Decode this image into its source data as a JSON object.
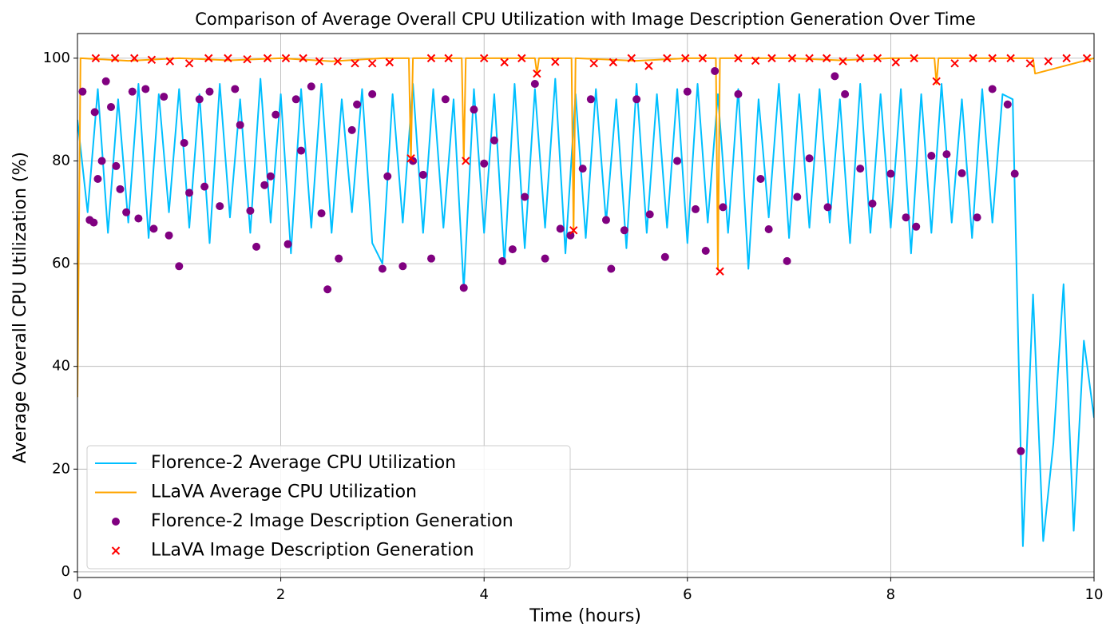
{
  "chart_data": {
    "type": "line",
    "title": "Comparison of Average Overall CPU Utilization with Image Description Generation Over Time",
    "x_label": "Time (hours)",
    "y_label": "Average Overall CPU Utilization (%)",
    "xlim": [
      0,
      10
    ],
    "xticks": [
      0,
      2,
      4,
      6,
      8,
      10
    ],
    "ylim": [
      -1.1,
      104.8
    ],
    "yticks": [
      0,
      20,
      40,
      60,
      80,
      100
    ],
    "grid": true,
    "legend_loc": "lower left",
    "series": [
      {
        "name": "Florence-2 Average CPU Utilization",
        "type": "line",
        "color": "#00bfff",
        "x": [
          0,
          0.1,
          0.2,
          0.3,
          0.4,
          0.5,
          0.6,
          0.7,
          0.8,
          0.9,
          1,
          1.1,
          1.2,
          1.3,
          1.4,
          1.5,
          1.6,
          1.7,
          1.8,
          1.9,
          2,
          2.1,
          2.2,
          2.3,
          2.4,
          2.5,
          2.6,
          2.7,
          2.8,
          2.9,
          3,
          3.1,
          3.2,
          3.3,
          3.4,
          3.5,
          3.6,
          3.7,
          3.8,
          3.9,
          4,
          4.1,
          4.2,
          4.3,
          4.4,
          4.5,
          4.6,
          4.7,
          4.8,
          4.9,
          5,
          5.1,
          5.2,
          5.3,
          5.4,
          5.5,
          5.6,
          5.7,
          5.8,
          5.9,
          6,
          6.1,
          6.2,
          6.3,
          6.4,
          6.5,
          6.6,
          6.7,
          6.8,
          6.9,
          7,
          7.1,
          7.2,
          7.3,
          7.4,
          7.5,
          7.6,
          7.7,
          7.8,
          7.9,
          8,
          8.1,
          8.2,
          8.3,
          8.4,
          8.5,
          8.6,
          8.7,
          8.8,
          8.9,
          9,
          9.1,
          9.2,
          9.3,
          9.4,
          9.5,
          9.6,
          9.7,
          9.8,
          9.9,
          10
        ],
        "values": [
          88,
          70,
          94,
          66,
          92,
          68,
          95,
          65,
          93,
          70,
          94,
          67,
          93,
          64,
          95,
          69,
          92,
          66,
          96,
          68,
          93,
          62,
          94,
          67,
          95,
          66,
          92,
          70,
          94,
          64,
          60,
          93,
          68,
          95,
          66,
          94,
          67,
          92,
          55,
          94,
          66,
          93,
          60,
          95,
          63,
          94,
          67,
          96,
          62,
          93,
          65,
          94,
          68,
          92,
          63,
          95,
          66,
          93,
          67,
          94,
          64,
          95,
          68,
          93,
          66,
          94,
          59,
          92,
          69,
          95,
          65,
          93,
          67,
          94,
          68,
          92,
          64,
          95,
          66,
          93,
          67,
          94,
          62,
          93,
          66,
          95,
          68,
          92,
          65,
          94,
          68,
          93,
          92,
          5,
          54,
          6,
          25,
          56,
          8,
          45,
          30
        ]
      },
      {
        "name": "LLaVA Average CPU Utilization",
        "type": "line",
        "color": "#ffa500",
        "x": [
          0,
          0.03,
          0.5,
          1,
          1.5,
          2,
          2.5,
          3,
          3.26,
          3.28,
          3.3,
          3.78,
          3.8,
          3.82,
          4.5,
          4.52,
          4.54,
          4.86,
          4.88,
          4.9,
          5.5,
          6,
          6.28,
          6.3,
          6.32,
          7,
          7.5,
          8,
          8.43,
          8.45,
          8.47,
          9,
          9.4,
          9.42,
          10
        ],
        "values": [
          34,
          100,
          99.5,
          100,
          99.6,
          100,
          99.4,
          100,
          100,
          80,
          100,
          100,
          80,
          100,
          100,
          97,
          100,
          100,
          66,
          100,
          99.5,
          100,
          100,
          59,
          100,
          100,
          99.6,
          100,
          100,
          95,
          100,
          100,
          100,
          97,
          100
        ]
      },
      {
        "name": "Florence-2 Image Description Generation",
        "type": "scatter",
        "color": "#800080",
        "marker": "circle",
        "x": [
          0.05,
          0.12,
          0.16,
          0.17,
          0.2,
          0.24,
          0.28,
          0.33,
          0.38,
          0.42,
          0.48,
          0.54,
          0.6,
          0.67,
          0.75,
          0.85,
          0.9,
          1.0,
          1.05,
          1.1,
          1.2,
          1.25,
          1.3,
          1.4,
          1.55,
          1.6,
          1.7,
          1.76,
          1.84,
          1.9,
          1.95,
          2.07,
          2.15,
          2.2,
          2.3,
          2.4,
          2.46,
          2.57,
          2.7,
          2.75,
          2.9,
          3.0,
          3.05,
          3.2,
          3.3,
          3.4,
          3.48,
          3.62,
          3.8,
          3.9,
          4.0,
          4.1,
          4.18,
          4.28,
          4.4,
          4.5,
          4.6,
          4.75,
          4.85,
          4.97,
          5.05,
          5.2,
          5.25,
          5.38,
          5.5,
          5.63,
          5.78,
          5.9,
          6.0,
          6.08,
          6.18,
          6.27,
          6.35,
          6.5,
          6.72,
          6.8,
          6.98,
          7.08,
          7.2,
          7.38,
          7.45,
          7.55,
          7.7,
          7.82,
          8.0,
          8.15,
          8.25,
          8.4,
          8.55,
          8.7,
          8.85,
          9.0,
          9.15,
          9.22,
          9.28
        ],
        "values": [
          93.5,
          68.5,
          68,
          89.5,
          76.5,
          80,
          95.5,
          90.5,
          79,
          74.5,
          70,
          93.5,
          68.8,
          94,
          66.8,
          92.5,
          65.5,
          59.5,
          83.5,
          73.8,
          92,
          75,
          93.5,
          71.2,
          94,
          87,
          70.3,
          63.3,
          75.3,
          77,
          89,
          63.8,
          92,
          82,
          94.5,
          69.8,
          55,
          61,
          86,
          91,
          93,
          59,
          77,
          59.5,
          80,
          77.3,
          61,
          92,
          55.3,
          90,
          79.5,
          84,
          60.5,
          62.8,
          73,
          95,
          61,
          66.8,
          65.5,
          78.5,
          92,
          68.5,
          59,
          66.5,
          92,
          69.6,
          61.3,
          80,
          93.5,
          70.6,
          62.5,
          97.5,
          71,
          93,
          76.5,
          66.7,
          60.5,
          73,
          80.5,
          71,
          96.5,
          93,
          78.5,
          71.7,
          77.5,
          69,
          67.2,
          81,
          81.3,
          77.6,
          69,
          94,
          91,
          77.5,
          23.5
        ]
      },
      {
        "name": "LLaVA Image Description Generation",
        "type": "scatter",
        "color": "#ff0000",
        "marker": "x",
        "x": [
          0.18,
          0.37,
          0.56,
          0.73,
          0.91,
          1.1,
          1.29,
          1.48,
          1.67,
          1.87,
          2.05,
          2.22,
          2.38,
          2.56,
          2.73,
          2.9,
          3.07,
          3.28,
          3.48,
          3.65,
          3.82,
          4.0,
          4.2,
          4.37,
          4.52,
          4.7,
          4.88,
          5.08,
          5.27,
          5.45,
          5.62,
          5.8,
          5.98,
          6.15,
          6.32,
          6.5,
          6.67,
          6.83,
          7.03,
          7.2,
          7.37,
          7.53,
          7.7,
          7.87,
          8.05,
          8.23,
          8.45,
          8.63,
          8.81,
          9.0,
          9.18,
          9.37,
          9.55,
          9.73,
          9.93
        ],
        "values": [
          100,
          100,
          100,
          99.7,
          99.4,
          99,
          100,
          100,
          99.8,
          100,
          100,
          100,
          99.4,
          99.4,
          99,
          99,
          99.2,
          80.5,
          100,
          100,
          80,
          100,
          99.2,
          100,
          97,
          99.3,
          66.5,
          99,
          99.2,
          100,
          98.5,
          100,
          100,
          100,
          58.5,
          100,
          99.5,
          100,
          100,
          100,
          100,
          99.4,
          100,
          100,
          99.2,
          100,
          95.5,
          99,
          100,
          100,
          100,
          99,
          99.4,
          100,
          100
        ]
      }
    ]
  }
}
